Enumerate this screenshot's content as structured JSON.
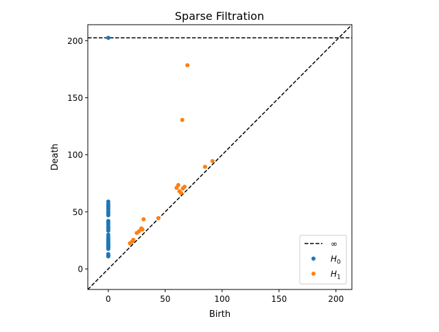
{
  "chart_data": {
    "type": "scatter",
    "title": "Sparse Filtration",
    "xlabel": "Birth",
    "ylabel": "Death",
    "xlim": [
      -18,
      214
    ],
    "ylim": [
      -18,
      214
    ],
    "xticks": [
      0,
      50,
      100,
      150,
      200
    ],
    "yticks": [
      0,
      50,
      100,
      150,
      200
    ],
    "infinity_line": 202.5,
    "diagonal": true,
    "grid": false,
    "legend_position": "lower-right",
    "legend": [
      {
        "label": "∞",
        "kind": "dashed-line",
        "color": "#000000"
      },
      {
        "label": "H",
        "sub": "0",
        "kind": "marker",
        "color": "#1f77b4"
      },
      {
        "label": "H",
        "sub": "1",
        "kind": "marker",
        "color": "#ff7f0e"
      }
    ],
    "series": [
      {
        "name": "H0",
        "color": "#1f77b4",
        "x": [
          0,
          0,
          0,
          0,
          0,
          0,
          0,
          0,
          0,
          0,
          0,
          0,
          0,
          0,
          0,
          0,
          0,
          0,
          0,
          0,
          0,
          0,
          0,
          0,
          0,
          0,
          0,
          0,
          0,
          0,
          0,
          0,
          0,
          0,
          0,
          0
        ],
        "y": [
          202.5,
          59,
          57,
          55.5,
          54.5,
          53,
          52,
          50,
          48.5,
          47,
          42,
          40.5,
          39,
          37,
          36,
          35,
          33.5,
          30,
          28,
          26.5,
          25.5,
          24.5,
          23.5,
          22.5,
          21.5,
          21,
          20.5,
          20,
          19.5,
          19,
          18.5,
          17.5,
          13,
          12,
          11.5,
          11
        ]
      },
      {
        "name": "H1",
        "color": "#ff7f0e",
        "x": [
          69.5,
          65,
          91.5,
          85,
          61.5,
          60,
          67,
          65.5,
          62.5,
          64,
          31,
          44,
          29,
          30,
          27,
          25,
          22,
          21,
          19
        ],
        "y": [
          178.5,
          130.5,
          94.5,
          89.5,
          73.5,
          71,
          72,
          70.5,
          68,
          66.5,
          43.5,
          44.5,
          35.5,
          34.5,
          33,
          31.5,
          25.5,
          24,
          22.5
        ]
      }
    ]
  }
}
